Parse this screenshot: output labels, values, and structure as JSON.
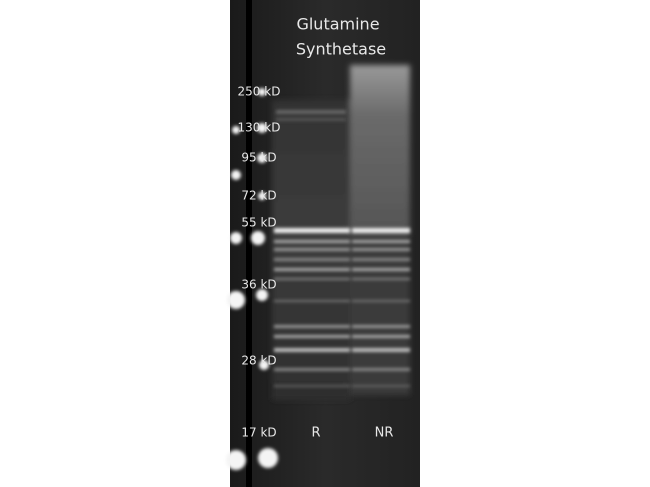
{
  "header": {
    "title_lines": [
      "Glutamine",
      "Synthetase"
    ]
  },
  "markers": [
    "250 kD",
    "130 kD",
    "95 kD",
    "72 kD",
    "55 kD",
    "36 kD",
    "28 kD",
    "17 kD"
  ],
  "lanes": [
    "R",
    "NR"
  ]
}
